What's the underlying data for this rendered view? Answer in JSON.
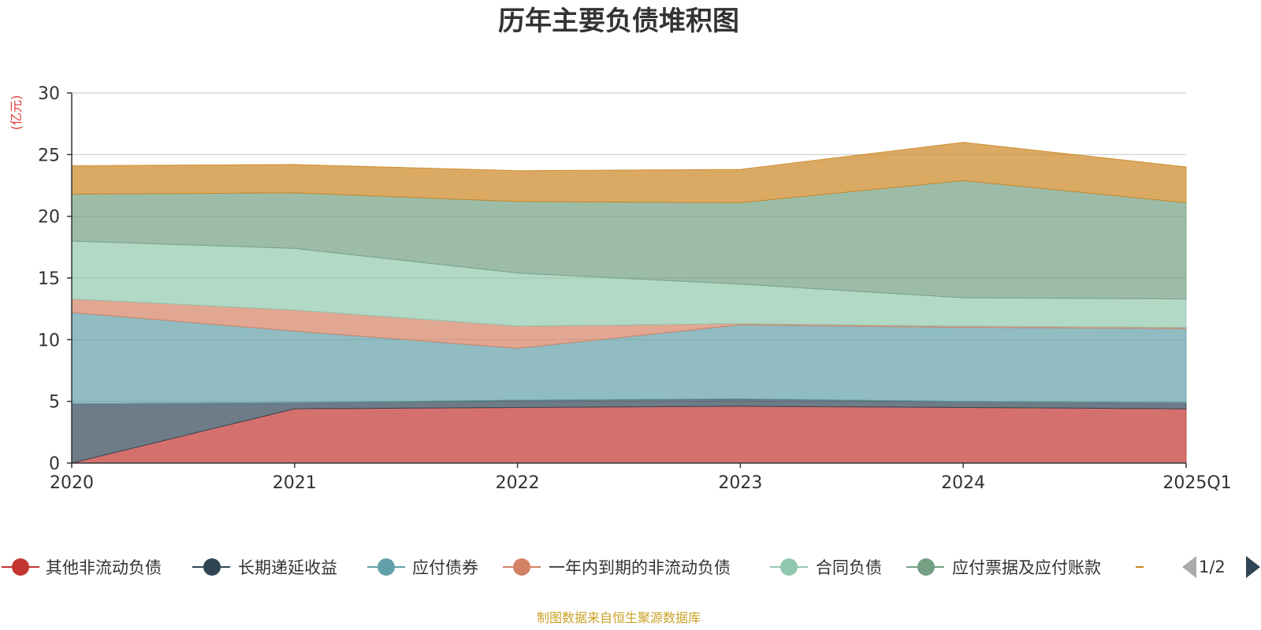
{
  "title": "历年主要负债堆积图",
  "unit_label": "(亿元)",
  "source_note": "制图数据来自恒生聚源数据库",
  "legend_page": "1/2",
  "colors": {
    "source_note": "#c9a227",
    "unit_label": "#e03a3a",
    "axis": "#333333",
    "grid": "#cccccc",
    "page_arrow_inactive": "#aaaaaa",
    "page_arrow_active": "#2f4554"
  },
  "legend_icons": {
    "prev_page": "triangle-left-icon",
    "next_page": "triangle-right-icon"
  },
  "chart_data": {
    "type": "area",
    "stacked": true,
    "x": [
      "2020",
      "2021",
      "2022",
      "2023",
      "2024",
      "2025Q1"
    ],
    "ylim": [
      0,
      30
    ],
    "yticks": [
      0,
      5,
      10,
      15,
      20,
      25,
      30
    ],
    "grid": true,
    "legend_position": "bottom",
    "series": [
      {
        "name": "其他非流动负债",
        "color": "#c23531",
        "values": [
          0,
          4.4,
          4.5,
          4.6,
          4.5,
          4.4
        ]
      },
      {
        "name": "长期递延收益",
        "color": "#2f4554",
        "values": [
          4.8,
          0.5,
          0.6,
          0.6,
          0.5,
          0.5
        ]
      },
      {
        "name": "应付债券",
        "color": "#61a0a8",
        "values": [
          7.4,
          5.8,
          4.2,
          6.0,
          6.0,
          6.0
        ]
      },
      {
        "name": "一年内到期的非流动负债",
        "color": "#d48265",
        "values": [
          1.1,
          1.7,
          1.8,
          0.1,
          0.1,
          0.1
        ]
      },
      {
        "name": "合同负债",
        "color": "#91c7ae",
        "values": [
          4.7,
          5.0,
          4.3,
          3.2,
          2.3,
          2.3
        ]
      },
      {
        "name": "应付票据及应付账款",
        "color": "#749f83",
        "values": [
          3.8,
          4.5,
          5.8,
          6.6,
          9.5,
          7.8
        ]
      },
      {
        "name": "",
        "color": "#ca8622",
        "values": [
          2.3,
          2.3,
          2.5,
          2.7,
          3.1,
          2.9
        ]
      }
    ]
  }
}
